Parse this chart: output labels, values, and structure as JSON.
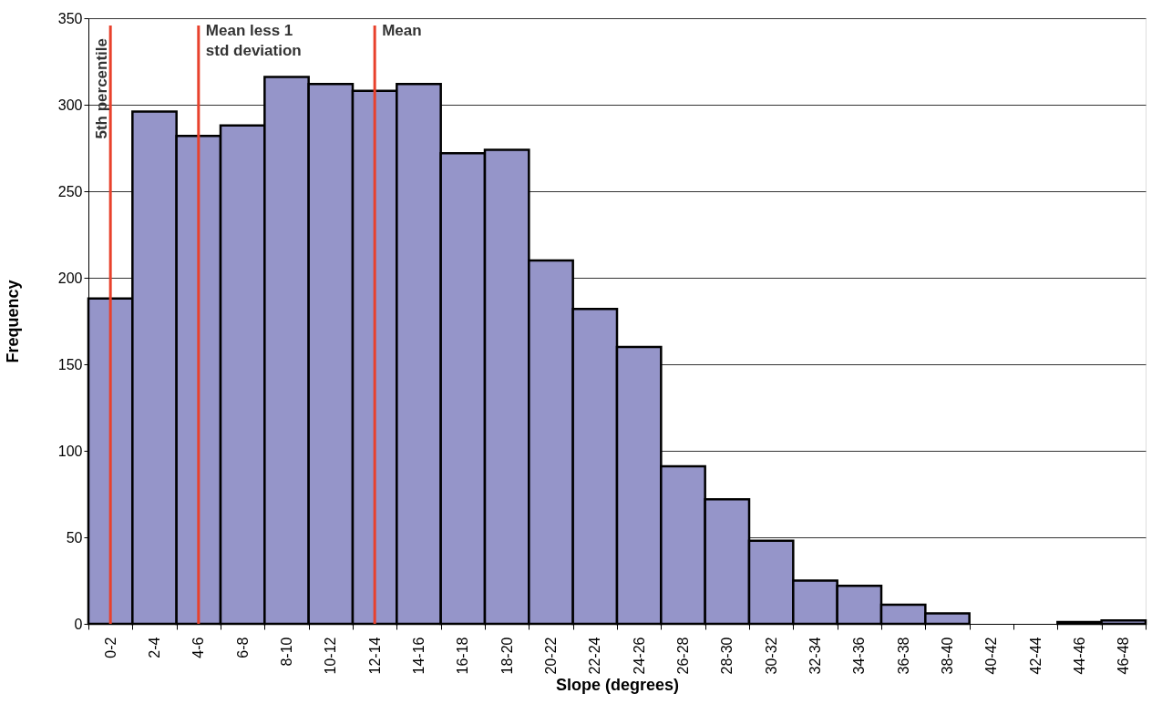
{
  "chart_data": {
    "type": "bar",
    "xlabel": "Slope (degrees)",
    "ylabel": "Frequency",
    "categories": [
      "0-2",
      "2-4",
      "4-6",
      "6-8",
      "8-10",
      "10-12",
      "12-14",
      "14-16",
      "16-18",
      "18-20",
      "20-22",
      "22-24",
      "24-26",
      "26-28",
      "28-30",
      "30-32",
      "32-34",
      "34-36",
      "36-38",
      "38-40",
      "40-42",
      "42-44",
      "44-46",
      "46-48"
    ],
    "values": [
      188,
      296,
      282,
      288,
      316,
      312,
      308,
      312,
      272,
      274,
      210,
      182,
      160,
      91,
      72,
      48,
      25,
      22,
      11,
      6,
      0,
      0,
      1,
      2
    ],
    "color": "#9595c9",
    "ylim": [
      0,
      350
    ],
    "yticks": [
      0,
      50,
      100,
      150,
      200,
      250,
      300,
      350
    ],
    "grid": "y",
    "ref_lines": [
      {
        "axis": "x",
        "value": "0-2",
        "label": "5th percentile",
        "color": "#e8412c"
      },
      {
        "axis": "x",
        "value": "4-6",
        "label": "Mean less 1\nstd deviation",
        "color": "#e8412c"
      },
      {
        "axis": "x",
        "value": "12-14",
        "label": "Mean",
        "color": "#e8412c"
      }
    ]
  }
}
